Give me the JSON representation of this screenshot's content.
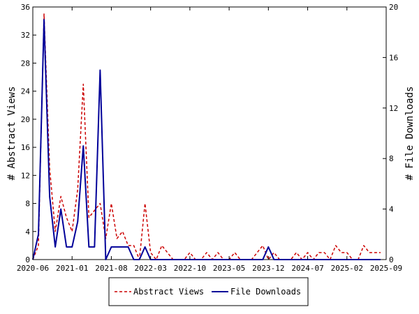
{
  "chart_data": {
    "type": "line",
    "title": "",
    "xlabel": "",
    "ylabel": "# Abstract Views",
    "y2label": "# File Downloads",
    "xlim": [
      "2020-06",
      "2025-09"
    ],
    "ylim": [
      0,
      36
    ],
    "y2lim": [
      0,
      20
    ],
    "x_ticks": [
      "2020-06",
      "2021-01",
      "2021-08",
      "2022-03",
      "2022-10",
      "2023-05",
      "2023-12",
      "2024-07",
      "2025-02",
      "2025-09"
    ],
    "y_ticks": [
      "0",
      "4",
      "8",
      "12",
      "16",
      "20",
      "24",
      "28",
      "32",
      "36"
    ],
    "y2_ticks": [
      "0",
      "4",
      "8",
      "12",
      "16",
      "20"
    ],
    "grid": false,
    "legend_position": "bottom",
    "series": [
      {
        "name": "Abstract Views",
        "axis": "left",
        "color": "#cc0000",
        "style": "dashed",
        "points": [
          [
            "2020-06",
            0
          ],
          [
            "2020-07",
            2
          ],
          [
            "2020-08",
            35
          ],
          [
            "2020-09",
            13
          ],
          [
            "2020-10",
            4
          ],
          [
            "2020-11",
            9
          ],
          [
            "2020-12",
            6
          ],
          [
            "2021-01",
            4
          ],
          [
            "2021-02",
            10
          ],
          [
            "2021-03",
            25
          ],
          [
            "2021-04",
            6
          ],
          [
            "2021-05",
            7
          ],
          [
            "2021-06",
            8
          ],
          [
            "2021-07",
            3
          ],
          [
            "2021-08",
            8
          ],
          [
            "2021-09",
            3
          ],
          [
            "2021-10",
            4
          ],
          [
            "2021-11",
            2
          ],
          [
            "2021-12",
            2
          ],
          [
            "2022-01",
            0
          ],
          [
            "2022-02",
            8
          ],
          [
            "2022-03",
            1
          ],
          [
            "2022-04",
            0
          ],
          [
            "2022-05",
            2
          ],
          [
            "2022-06",
            1
          ],
          [
            "2022-07",
            0
          ],
          [
            "2022-08",
            0
          ],
          [
            "2022-09",
            0
          ],
          [
            "2022-10",
            1
          ],
          [
            "2022-11",
            0
          ],
          [
            "2022-12",
            0
          ],
          [
            "2023-01",
            1
          ],
          [
            "2023-02",
            0
          ],
          [
            "2023-03",
            1
          ],
          [
            "2023-04",
            0
          ],
          [
            "2023-05",
            0
          ],
          [
            "2023-06",
            1
          ],
          [
            "2023-07",
            0
          ],
          [
            "2023-08",
            0
          ],
          [
            "2023-09",
            0
          ],
          [
            "2023-10",
            1
          ],
          [
            "2023-11",
            2
          ],
          [
            "2023-12",
            0
          ],
          [
            "2024-01",
            1
          ],
          [
            "2024-02",
            0
          ],
          [
            "2024-03",
            0
          ],
          [
            "2024-04",
            0
          ],
          [
            "2024-05",
            1
          ],
          [
            "2024-06",
            0
          ],
          [
            "2024-07",
            1
          ],
          [
            "2024-08",
            0
          ],
          [
            "2024-09",
            1
          ],
          [
            "2024-10",
            1
          ],
          [
            "2024-11",
            0
          ],
          [
            "2024-12",
            2
          ],
          [
            "2025-01",
            1
          ],
          [
            "2025-02",
            1
          ],
          [
            "2025-03",
            0
          ],
          [
            "2025-04",
            0
          ],
          [
            "2025-05",
            2
          ],
          [
            "2025-06",
            1
          ],
          [
            "2025-07",
            1
          ],
          [
            "2025-08",
            1
          ]
        ]
      },
      {
        "name": "File Downloads",
        "axis": "right",
        "color": "#000099",
        "style": "solid",
        "points": [
          [
            "2020-06",
            0
          ],
          [
            "2020-07",
            2
          ],
          [
            "2020-08",
            19
          ],
          [
            "2020-09",
            5
          ],
          [
            "2020-10",
            1
          ],
          [
            "2020-11",
            4
          ],
          [
            "2020-12",
            1
          ],
          [
            "2021-01",
            1
          ],
          [
            "2021-02",
            3
          ],
          [
            "2021-03",
            9
          ],
          [
            "2021-04",
            1
          ],
          [
            "2021-05",
            1
          ],
          [
            "2021-06",
            15
          ],
          [
            "2021-07",
            0
          ],
          [
            "2021-08",
            1
          ],
          [
            "2021-09",
            1
          ],
          [
            "2021-10",
            1
          ],
          [
            "2021-11",
            1
          ],
          [
            "2021-12",
            0
          ],
          [
            "2022-01",
            0
          ],
          [
            "2022-02",
            1
          ],
          [
            "2022-03",
            0
          ],
          [
            "2022-04",
            0
          ],
          [
            "2022-05",
            0
          ],
          [
            "2022-06",
            0
          ],
          [
            "2022-07",
            0
          ],
          [
            "2022-08",
            0
          ],
          [
            "2022-09",
            0
          ],
          [
            "2022-10",
            0
          ],
          [
            "2022-11",
            0
          ],
          [
            "2022-12",
            0
          ],
          [
            "2023-01",
            0
          ],
          [
            "2023-02",
            0
          ],
          [
            "2023-03",
            0
          ],
          [
            "2023-04",
            0
          ],
          [
            "2023-05",
            0
          ],
          [
            "2023-06",
            0
          ],
          [
            "2023-07",
            0
          ],
          [
            "2023-08",
            0
          ],
          [
            "2023-09",
            0
          ],
          [
            "2023-10",
            0
          ],
          [
            "2023-11",
            0
          ],
          [
            "2023-12",
            1
          ],
          [
            "2024-01",
            0
          ],
          [
            "2024-02",
            0
          ],
          [
            "2024-03",
            0
          ],
          [
            "2024-04",
            0
          ],
          [
            "2024-05",
            0
          ],
          [
            "2024-06",
            0
          ],
          [
            "2024-07",
            0
          ],
          [
            "2024-08",
            0
          ],
          [
            "2024-09",
            0
          ],
          [
            "2024-10",
            0
          ],
          [
            "2024-11",
            0
          ],
          [
            "2024-12",
            0
          ],
          [
            "2025-01",
            0
          ],
          [
            "2025-02",
            0
          ],
          [
            "2025-03",
            0
          ],
          [
            "2025-04",
            0
          ],
          [
            "2025-05",
            0
          ],
          [
            "2025-06",
            0
          ],
          [
            "2025-07",
            0
          ],
          [
            "2025-08",
            0
          ]
        ]
      }
    ]
  }
}
